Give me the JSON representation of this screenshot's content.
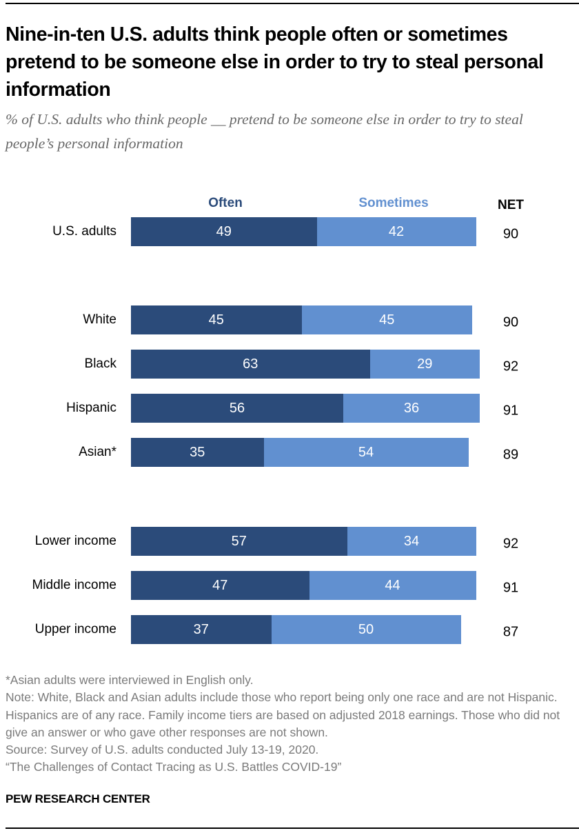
{
  "title": "Nine-in-ten U.S. adults think people often or sometimes pretend to be someone else in order to try to steal personal information",
  "subtitle": "% of U.S. adults who think people __ pretend to be someone else in order to try to steal people’s personal information",
  "chart_data": {
    "type": "bar",
    "orientation": "horizontal-stacked",
    "title": "Nine-in-ten U.S. adults think people often or sometimes pretend to be someone else in order to try to steal personal information",
    "subtitle": "% of U.S. adults who think people __ pretend to be someone else in order to try to steal people’s personal information",
    "xlabel": "",
    "ylabel": "",
    "xlim": [
      0,
      100
    ],
    "grid": false,
    "legend_placement": "top",
    "legend": [
      "Often",
      "Sometimes"
    ],
    "net_header": "NET",
    "categories": [
      "U.S. adults",
      "White",
      "Black",
      "Hispanic",
      "Asian*",
      "Lower income",
      "Middle income",
      "Upper income"
    ],
    "groups": [
      [
        "U.S. adults"
      ],
      [
        "White",
        "Black",
        "Hispanic",
        "Asian*"
      ],
      [
        "Lower income",
        "Middle income",
        "Upper income"
      ]
    ],
    "series": [
      {
        "name": "Often",
        "color": "#2b4b7a",
        "values": [
          49,
          45,
          63,
          56,
          35,
          57,
          47,
          37
        ]
      },
      {
        "name": "Sometimes",
        "color": "#6190d0",
        "values": [
          42,
          45,
          29,
          36,
          54,
          34,
          44,
          50
        ]
      }
    ],
    "net": [
      90,
      90,
      92,
      91,
      89,
      92,
      91,
      87
    ]
  },
  "notes": [
    "*Asian adults were interviewed in English only.",
    "Note: White, Black and Asian adults include those who report being only one race and are not Hispanic. Hispanics are of any race. Family income tiers are based on adjusted 2018 earnings. Those who did not give an answer or who gave other responses are not shown.",
    "Source: Survey of U.S. adults conducted July 13-19, 2020.",
    "“The Challenges of Contact Tracing as U.S. Battles COVID-19”"
  ],
  "brand": "PEW RESEARCH CENTER"
}
